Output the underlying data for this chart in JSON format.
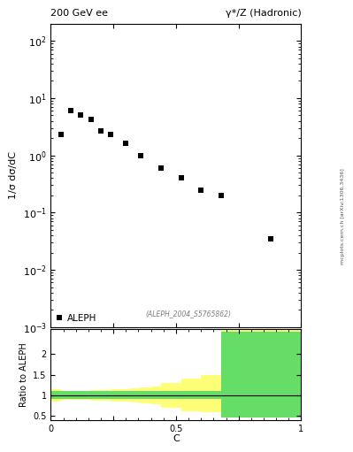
{
  "title_left": "200 GeV ee",
  "title_right": "γ*/Z (Hadronic)",
  "ylabel_main": "1/σ dσ/dC",
  "ylabel_ratio": "Ratio to ALEPH",
  "xlabel": "C",
  "watermark": "(ALEPH_2004_S5765862)",
  "sideways_text": "mcplots.cern.ch [arXiv:1306.3436]",
  "legend_label": "ALEPH",
  "data_x": [
    0.04,
    0.08,
    0.12,
    0.16,
    0.2,
    0.24,
    0.3,
    0.36,
    0.44,
    0.52,
    0.6,
    0.68,
    0.88
  ],
  "data_y": [
    2.3,
    6.0,
    5.0,
    4.2,
    2.7,
    2.3,
    1.6,
    1.0,
    0.6,
    0.4,
    0.25,
    0.2,
    0.035
  ],
  "ylim_main": [
    0.001,
    200
  ],
  "xlim": [
    0,
    1
  ],
  "ratio_bin_edges": [
    0.0,
    0.04,
    0.08,
    0.12,
    0.16,
    0.2,
    0.24,
    0.28,
    0.32,
    0.36,
    0.4,
    0.44,
    0.52,
    0.6,
    0.68,
    0.76,
    1.0
  ],
  "ratio_green_upper": [
    1.1,
    1.1,
    1.1,
    1.1,
    1.1,
    1.1,
    1.1,
    1.1,
    1.1,
    1.1,
    1.1,
    1.1,
    1.1,
    1.1,
    2.55,
    2.55
  ],
  "ratio_green_lower": [
    0.9,
    0.9,
    0.9,
    0.9,
    0.9,
    0.9,
    0.9,
    0.9,
    0.9,
    0.9,
    0.9,
    0.9,
    0.9,
    0.9,
    0.45,
    0.45
  ],
  "ratio_yellow_upper": [
    1.15,
    1.1,
    1.1,
    1.1,
    1.12,
    1.13,
    1.15,
    1.15,
    1.17,
    1.2,
    1.22,
    1.3,
    1.4,
    1.5,
    2.6,
    2.6
  ],
  "ratio_yellow_lower": [
    0.85,
    0.88,
    0.88,
    0.88,
    0.87,
    0.86,
    0.85,
    0.84,
    0.82,
    0.8,
    0.78,
    0.7,
    0.62,
    0.58,
    0.45,
    0.45
  ],
  "ratio_ylim": [
    0.4,
    2.6
  ],
  "ratio_yticks": [
    0.5,
    1.0,
    1.5,
    2.0
  ],
  "ratio_ytick_labels": [
    "0.5",
    "1",
    "1.5",
    "2"
  ],
  "green_color": "#66dd66",
  "yellow_color": "#ffff77",
  "marker_color": "black",
  "marker_style": "s",
  "marker_size": 4,
  "main_fontsize": 8,
  "ratio_fontsize": 7
}
